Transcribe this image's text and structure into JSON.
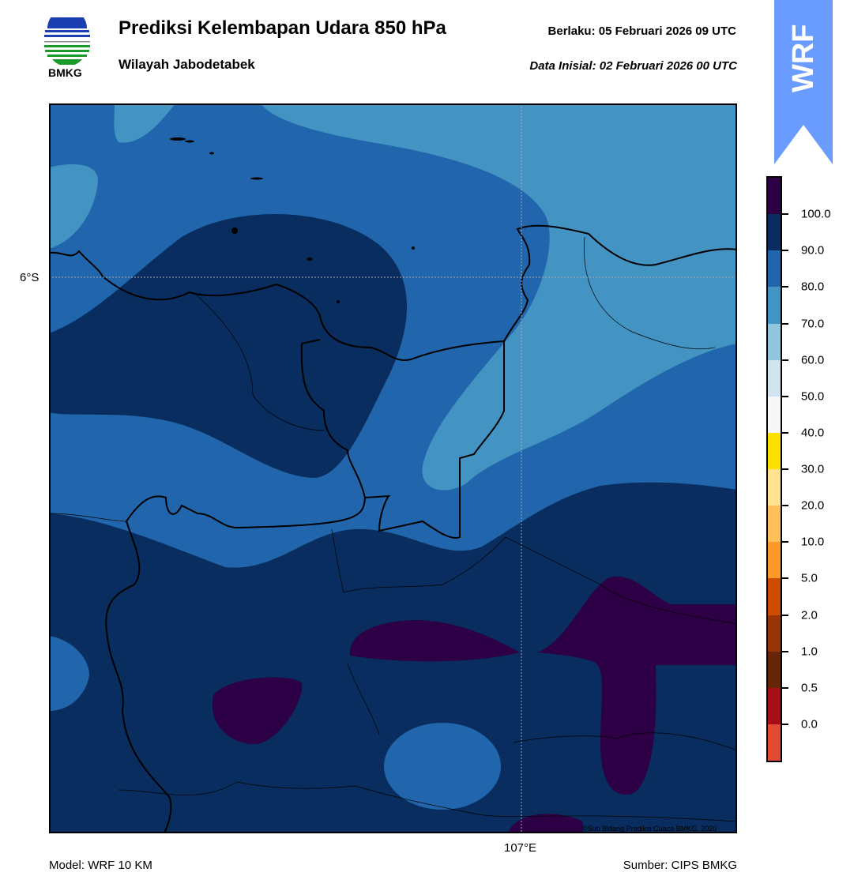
{
  "header": {
    "title": "Prediksi Kelembapan Udara 850 hPa",
    "subtitle": "Wilayah Jabodetabek",
    "valid": "Berlaku:  05 Februari 2026 09 UTC",
    "initial": "Data Inisial:  02 Februari 2026 00 UTC",
    "logo_text": "BMKG",
    "badge": "WRF"
  },
  "map": {
    "lat_label": "6°S",
    "lon_label": "107°E",
    "copyright": "©Sub Bidang Prediksi Cuaca BMKG, 2020",
    "fill_colors": {
      "c100": "#2d0046",
      "c90": "#082d5e",
      "c80": "#2166ac",
      "c70": "#4393c3"
    }
  },
  "colorbar": {
    "colors": [
      "#2d0046",
      "#082d5e",
      "#2166ac",
      "#4393c3",
      "#92c5de",
      "#d1e5f0",
      "#f7f7f7",
      "#fde000",
      "#fee391",
      "#fec15a",
      "#fb9a29",
      "#cc4c02",
      "#993404",
      "#662506",
      "#a50f15",
      "#e34a33"
    ],
    "labels": [
      "100.0",
      "90.0",
      "80.0",
      "70.0",
      "60.0",
      "50.0",
      "40.0",
      "30.0",
      "20.0",
      "10.0",
      "5.0",
      "2.0",
      "1.0",
      "0.5",
      "0.0"
    ]
  },
  "footer": {
    "model": "Model: WRF 10 KM",
    "source": "Sumber: CIPS BMKG"
  }
}
